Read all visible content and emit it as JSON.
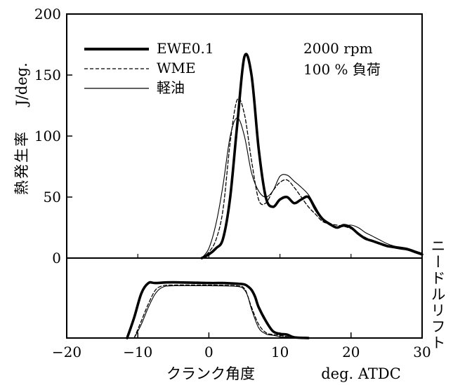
{
  "chart_data": [
    {
      "type": "line",
      "title": "",
      "ylabel": "熱発生率",
      "yunit": "J/deg.",
      "xlabel": "クランク角度",
      "xunit": "deg. ATDC",
      "xlim": [
        -20,
        30
      ],
      "ylim": [
        0,
        200
      ],
      "yticks": [
        0,
        50,
        100,
        150,
        200
      ],
      "xticks": [
        -20,
        -10,
        0,
        10,
        20,
        30
      ],
      "grid": false,
      "legend": "top-left",
      "annotations": [
        "2000 rpm",
        "100 % 負荷"
      ],
      "series": [
        {
          "name": "EWE0.1",
          "style": "thick-solid",
          "x": [
            -1,
            0,
            1,
            2,
            3,
            4,
            5,
            6,
            7,
            8,
            9,
            10,
            11,
            12,
            13,
            14,
            15,
            16,
            17,
            18,
            19,
            20,
            21,
            22,
            23,
            24,
            25,
            26,
            27,
            28,
            29,
            30
          ],
          "y": [
            0,
            3,
            8,
            16,
            50,
            110,
            165,
            150,
            90,
            50,
            42,
            48,
            50,
            45,
            48,
            50,
            40,
            32,
            28,
            25,
            27,
            25,
            20,
            16,
            14,
            12,
            10,
            9,
            8,
            7,
            5,
            3
          ]
        },
        {
          "name": "WME",
          "style": "dashed",
          "x": [
            -1,
            0,
            1,
            2,
            3,
            4,
            5,
            6,
            7,
            8,
            9,
            10,
            11,
            12,
            13,
            14,
            15,
            16,
            17,
            18,
            19,
            20,
            21,
            22,
            23,
            24,
            25,
            26,
            27,
            28,
            29,
            30
          ],
          "y": [
            0,
            5,
            15,
            40,
            95,
            130,
            118,
            80,
            48,
            45,
            55,
            62,
            64,
            58,
            50,
            42,
            36,
            30,
            28,
            27,
            26,
            24,
            20,
            17,
            14,
            12,
            10,
            9,
            8,
            7,
            5,
            3
          ]
        },
        {
          "name": "軽油",
          "style": "thin-solid",
          "x": [
            -1,
            0,
            1,
            2,
            3,
            4,
            5,
            6,
            7,
            8,
            9,
            10,
            11,
            12,
            13,
            14,
            15,
            16,
            17,
            18,
            19,
            20,
            21,
            22,
            23,
            24,
            25,
            26,
            27,
            28,
            29,
            30
          ],
          "y": [
            0,
            8,
            28,
            60,
            100,
            115,
            100,
            70,
            55,
            50,
            55,
            67,
            68,
            63,
            58,
            52,
            42,
            32,
            27,
            25,
            26,
            27,
            25,
            21,
            18,
            15,
            12,
            10,
            9,
            8,
            6,
            4
          ]
        }
      ]
    },
    {
      "type": "line",
      "title": "",
      "ylabel": "ニードルリフト",
      "xlabel": "クランク角度",
      "xunit": "deg. ATDC",
      "xlim": [
        -20,
        30
      ],
      "ylim": [
        0,
        1
      ],
      "grid": false,
      "series": [
        {
          "name": "EWE0.1",
          "style": "thick-solid",
          "x": [
            -11.5,
            -10.5,
            -9.5,
            -8.5,
            -7.5,
            -5,
            0,
            2,
            4,
            5,
            5.5,
            6,
            6.5,
            7,
            8,
            9,
            10,
            11,
            12,
            14
          ],
          "y": [
            0,
            0.3,
            0.65,
            0.8,
            0.8,
            0.81,
            0.8,
            0.8,
            0.79,
            0.78,
            0.75,
            0.7,
            0.6,
            0.45,
            0.25,
            0.1,
            0.06,
            0.05,
            0.01,
            0
          ]
        },
        {
          "name": "WME",
          "style": "dashed",
          "x": [
            -10.5,
            -9.5,
            -8.5,
            -7.5,
            -6.5,
            -5,
            0,
            4,
            5,
            5.5,
            6,
            7,
            8,
            9,
            10,
            11,
            12
          ],
          "y": [
            0,
            0.25,
            0.5,
            0.7,
            0.76,
            0.77,
            0.77,
            0.76,
            0.72,
            0.6,
            0.45,
            0.2,
            0.08,
            0.05,
            0.04,
            0.02,
            0
          ]
        },
        {
          "name": "軽油",
          "style": "thin-solid",
          "x": [
            -10.5,
            -9.5,
            -8.5,
            -7.5,
            -6.5,
            -5,
            0,
            4,
            5,
            5.5,
            6,
            7,
            8,
            9,
            10,
            11,
            12
          ],
          "y": [
            0,
            0.2,
            0.45,
            0.65,
            0.74,
            0.76,
            0.76,
            0.75,
            0.7,
            0.6,
            0.42,
            0.15,
            0.06,
            0.04,
            0.02,
            0.01,
            0
          ]
        }
      ]
    }
  ]
}
